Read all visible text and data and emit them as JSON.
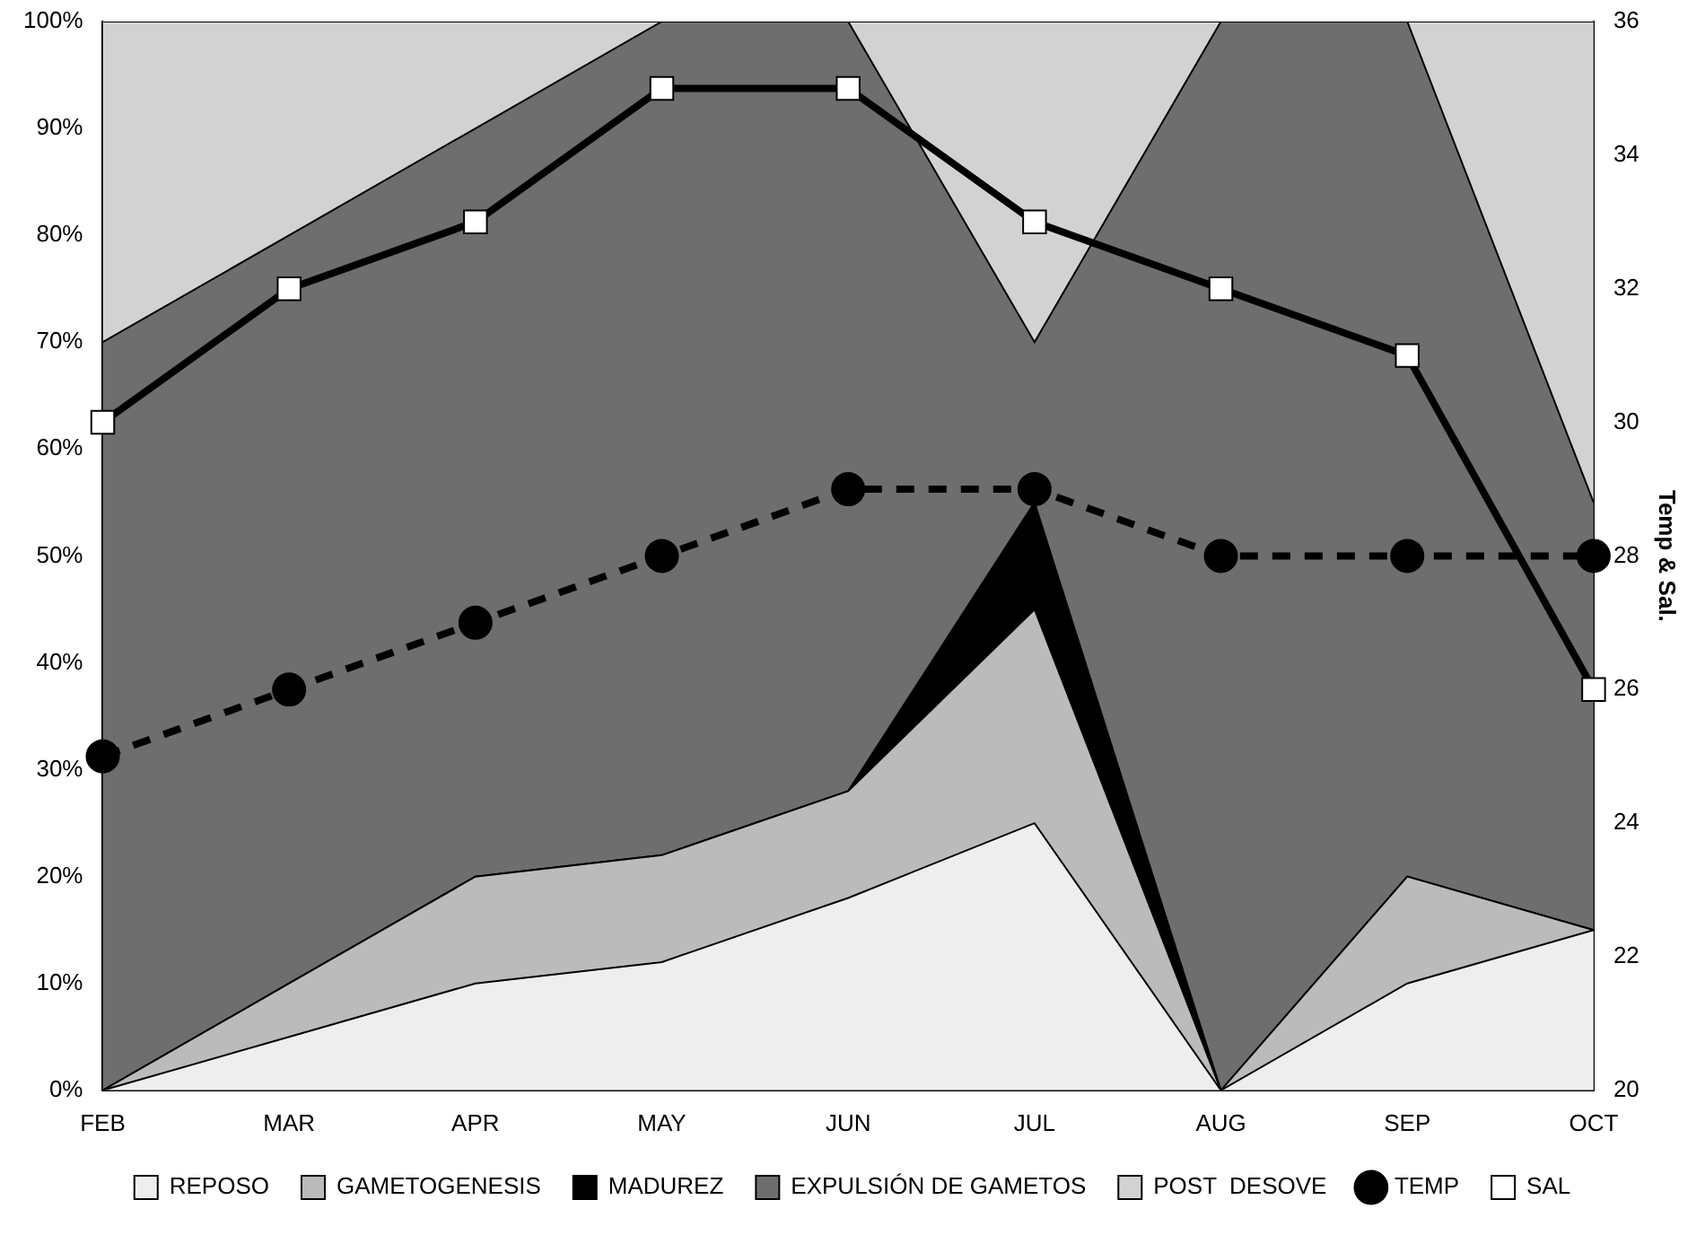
{
  "chart_data": {
    "type": "area",
    "stacked": true,
    "y2label": "Temp & Sal.",
    "categories": [
      "FEB",
      "MAR",
      "APR",
      "MAY",
      "JUN",
      "JUL",
      "AUG",
      "SEP",
      "OCT"
    ],
    "series": [
      {
        "name": "REPOSO",
        "color": "#eeeeee",
        "values": [
          0,
          5,
          10,
          12,
          18,
          25,
          0,
          10,
          15
        ]
      },
      {
        "name": "GAMETOGENESIS",
        "color": "#bbbbbb",
        "values": [
          0,
          5,
          10,
          10,
          10,
          20,
          0,
          10,
          0
        ]
      },
      {
        "name": "MADUREZ",
        "color": "#000000",
        "values": [
          0,
          0,
          0,
          0,
          0,
          10,
          0,
          0,
          0
        ]
      },
      {
        "name": "EXPULSIÓN DE GAMETOS",
        "color": "#6e6e6e",
        "values": [
          70,
          70,
          70,
          78,
          72,
          15,
          100,
          80,
          40
        ]
      },
      {
        "name": "POST  DESOVE",
        "color": "#d2d2d2",
        "values": [
          30,
          20,
          10,
          0,
          0,
          30,
          0,
          0,
          45
        ]
      },
      {
        "name": "TEMP",
        "type": "line",
        "axis": "y2",
        "color": "#000000",
        "marker": "circle",
        "line_style": "dashed",
        "values": [
          25,
          26,
          27,
          28,
          29,
          29,
          28,
          28,
          28
        ]
      },
      {
        "name": "SAL",
        "type": "line",
        "axis": "y2",
        "color": "#000000",
        "marker": "square",
        "line_style": "solid",
        "values": [
          30,
          32,
          33,
          35,
          35,
          33,
          32,
          31,
          26
        ]
      }
    ],
    "ylim": [
      0,
      100
    ],
    "yticks": [
      {
        "value": 0,
        "label": "0%"
      },
      {
        "value": 10,
        "label": "10%"
      },
      {
        "value": 20,
        "label": "20%"
      },
      {
        "value": 30,
        "label": "30%"
      },
      {
        "value": 40,
        "label": "40%"
      },
      {
        "value": 50,
        "label": "50%"
      },
      {
        "value": 60,
        "label": "60%"
      },
      {
        "value": 70,
        "label": "70%"
      },
      {
        "value": 80,
        "label": "80%"
      },
      {
        "value": 90,
        "label": "90%"
      },
      {
        "value": 100,
        "label": "100%"
      }
    ],
    "y2lim": [
      20,
      36
    ],
    "y2ticks": [
      20,
      22,
      24,
      26,
      28,
      30,
      32,
      34,
      36
    ],
    "grid": false,
    "legend": "bottom"
  }
}
